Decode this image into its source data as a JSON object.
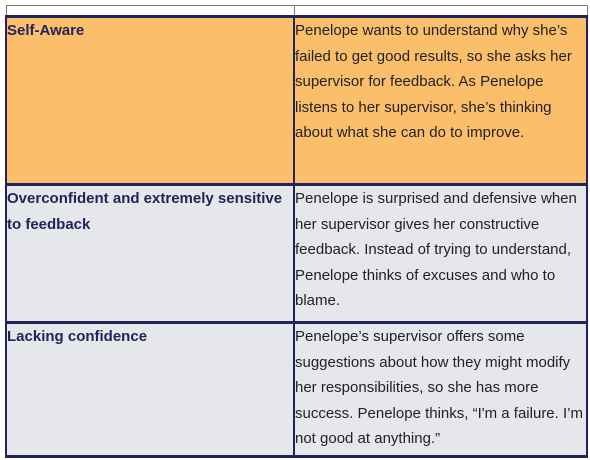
{
  "table": {
    "rows": [
      {
        "trait": "Self-Aware",
        "description": "Penelope wants to understand why she’s failed to get good results, so she asks her supervisor for feedback.  As Penelope listens to her supervisor, she’s thinking about what she can do to improve.",
        "background": "#fbbf6c"
      },
      {
        "trait": "Overconfident and extremely sensitive to feedback",
        "description": "Penelope is surprised and defensive when her supervisor gives her constructive feedback. Instead of trying to understand, Penelope thinks of excuses and who to blame.",
        "background": "#e6e7ea"
      },
      {
        "trait": "Lacking confidence",
        "description": "Penelope’s supervisor offers some suggestions about how they might modify her responsibilities, so she has more success. Penelope thinks, “I'm a failure. I’m not good at anything.”",
        "background": "#e6e7ea"
      }
    ]
  },
  "colors": {
    "border": "#23235b",
    "trait_text": "#23235b",
    "body_text": "#222222"
  }
}
